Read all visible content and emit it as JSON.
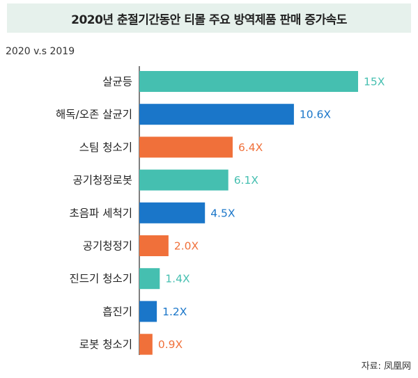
{
  "chart_data": {
    "type": "bar",
    "orientation": "horizontal",
    "title": "2020년 춘절기간동안 티몰 주요 방역제품 판매 증가속도",
    "subtitle": "2020 v.s 2019",
    "source": "자료: 凤凰网",
    "categories": [
      "살균등",
      "해독/오존 살균기",
      "스팀 청소기",
      "공기청정로봇",
      "초음파 세척기",
      "공기청정기",
      "진드기 청소기",
      "흡진기",
      "로봇 청소기"
    ],
    "values": [
      15,
      10.6,
      6.4,
      6.1,
      4.5,
      2.0,
      1.4,
      1.2,
      0.9
    ],
    "value_labels": [
      "15X",
      "10.6X",
      "6.4X",
      "6.1X",
      "4.5X",
      "2.0X",
      "1.4X",
      "1.2X",
      "0.9X"
    ],
    "bar_colors": [
      "#45bfb0",
      "#1a76c9",
      "#f0703a",
      "#45bfb0",
      "#1a76c9",
      "#f0703a",
      "#45bfb0",
      "#1a76c9",
      "#f0703a"
    ],
    "xlim": [
      0,
      15
    ]
  }
}
